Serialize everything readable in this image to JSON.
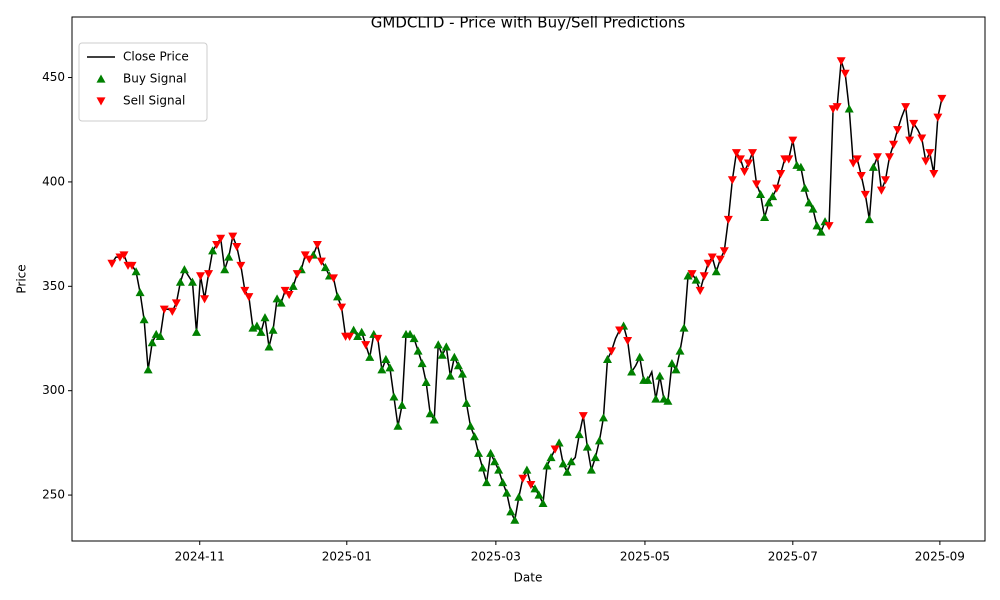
{
  "chart_data": {
    "type": "line",
    "title": "GMDCLTD - Price with Buy/Sell Predictions",
    "x_label": "Date",
    "y_label": "Price",
    "legend": "upper left",
    "grid": false,
    "categories": [
      null,
      null,
      null,
      null,
      null,
      null,
      null,
      null,
      null,
      null,
      null,
      null,
      null,
      null,
      null,
      null,
      null,
      null,
      null,
      null,
      null,
      null,
      null,
      null,
      null,
      null,
      null,
      null,
      null,
      null,
      null,
      null,
      null,
      null,
      null,
      null,
      null,
      null,
      null,
      null,
      null,
      null,
      null,
      null,
      null,
      null,
      null,
      null,
      null,
      null,
      null,
      null,
      null,
      null,
      null,
      null,
      null,
      null,
      null,
      null,
      null,
      null,
      null,
      null,
      null,
      null,
      null,
      null,
      null,
      null,
      null,
      null,
      null,
      null,
      null,
      null,
      null,
      null,
      null,
      null,
      null,
      null,
      null,
      null,
      null,
      null,
      null,
      null,
      null,
      null,
      null,
      null,
      null,
      null,
      null,
      null,
      null,
      null,
      null,
      null,
      null,
      null,
      null,
      null,
      null,
      null,
      null,
      null,
      null,
      null,
      null,
      null,
      null,
      null,
      null,
      null,
      null,
      null,
      null,
      null,
      null,
      null,
      null,
      null,
      null,
      null,
      null,
      null,
      null,
      null,
      null,
      null,
      null,
      null,
      null,
      null,
      null,
      null,
      null,
      null,
      null,
      null,
      null,
      null,
      null,
      null,
      null,
      null,
      null,
      null,
      null,
      null,
      null,
      null,
      null,
      null,
      null,
      null,
      null,
      null,
      null,
      null,
      null,
      null,
      null,
      null,
      null,
      null,
      null,
      null,
      null,
      null,
      null,
      null,
      null,
      null,
      null,
      null,
      null,
      null,
      null,
      null,
      null,
      null,
      null,
      null,
      null,
      null,
      null,
      null,
      null,
      null,
      null,
      null,
      null,
      null,
      null,
      null,
      null,
      null,
      null,
      null,
      null,
      null,
      null,
      null,
      null
    ],
    "xlim": [
      -9.9,
      216.7
    ],
    "xticks": [
      {
        "value": 21.8,
        "label": "2024-11"
      },
      {
        "value": 58.3,
        "label": "2025-01"
      },
      {
        "value": 95.3,
        "label": "2025-03"
      },
      {
        "value": 132.3,
        "label": "2025-05"
      },
      {
        "value": 169.0,
        "label": "2025-07"
      },
      {
        "value": 205.5,
        "label": "2025-09"
      }
    ],
    "ylim": [
      228,
      479
    ],
    "yticks": [
      250,
      300,
      350,
      400,
      450
    ],
    "series": [
      {
        "name": "Close Price",
        "color": "#000000",
        "marker": "line",
        "values": [
          361,
          364,
          364,
          365,
          360,
          360,
          357,
          347,
          334,
          310,
          323,
          327,
          326,
          339,
          339,
          338,
          342,
          352,
          358,
          355,
          352,
          328,
          355,
          344,
          356,
          367,
          370,
          373,
          358,
          364,
          374,
          369,
          360,
          348,
          345,
          330,
          331,
          328,
          335,
          321,
          329,
          344,
          342,
          348,
          346,
          350,
          356,
          358,
          365,
          363,
          365,
          370,
          362,
          359,
          355,
          354,
          345,
          340,
          326,
          326,
          329,
          326,
          328,
          322,
          316,
          327,
          325,
          310,
          315,
          311,
          297,
          283,
          293,
          327,
          327,
          325,
          319,
          313,
          304,
          289,
          286,
          322,
          317,
          321,
          307,
          316,
          312,
          308,
          294,
          283,
          278,
          270,
          263,
          256,
          270,
          266,
          262,
          256,
          251,
          242,
          238,
          249,
          258,
          262,
          255,
          253,
          250,
          246,
          264,
          268,
          272,
          275,
          265,
          261,
          266,
          268,
          279,
          288,
          273,
          262,
          268,
          276,
          287,
          315,
          319,
          325,
          329,
          331,
          324,
          309,
          312,
          316,
          305,
          305,
          309,
          296,
          307,
          296,
          295,
          313,
          310,
          319,
          330,
          355,
          356,
          353,
          348,
          355,
          361,
          364,
          357,
          363,
          367,
          382,
          401,
          414,
          411,
          405,
          409,
          414,
          399,
          394,
          383,
          390,
          393,
          397,
          404,
          411,
          411,
          420,
          408,
          407,
          397,
          390,
          387,
          379,
          376,
          381,
          379,
          435,
          436,
          458,
          452,
          435,
          409,
          411,
          403,
          394,
          382,
          407,
          412,
          396,
          401,
          412,
          418,
          425,
          431,
          436,
          420,
          428,
          425,
          421,
          410,
          414,
          404,
          431,
          440
        ]
      },
      {
        "name": "Buy Signal",
        "color": "#008000",
        "marker": "up",
        "values": [
          null,
          null,
          null,
          null,
          null,
          null,
          357,
          347,
          334,
          310,
          323,
          327,
          326,
          null,
          null,
          null,
          null,
          352,
          358,
          null,
          352,
          328,
          null,
          null,
          null,
          367,
          null,
          null,
          358,
          364,
          null,
          null,
          null,
          null,
          null,
          330,
          331,
          328,
          335,
          321,
          329,
          344,
          342,
          null,
          null,
          350,
          null,
          358,
          null,
          null,
          365,
          null,
          null,
          359,
          355,
          null,
          345,
          null,
          null,
          null,
          329,
          326,
          328,
          null,
          316,
          327,
          null,
          310,
          315,
          311,
          297,
          283,
          293,
          327,
          327,
          325,
          319,
          313,
          304,
          289,
          286,
          322,
          317,
          321,
          307,
          316,
          312,
          308,
          294,
          283,
          278,
          270,
          263,
          256,
          270,
          266,
          262,
          256,
          251,
          242,
          238,
          249,
          null,
          262,
          null,
          253,
          250,
          246,
          264,
          268,
          null,
          275,
          265,
          261,
          266,
          null,
          279,
          null,
          273,
          262,
          268,
          276,
          287,
          315,
          null,
          null,
          null,
          331,
          null,
          309,
          null,
          316,
          305,
          305,
          null,
          296,
          307,
          296,
          295,
          313,
          310,
          319,
          330,
          355,
          null,
          353,
          null,
          null,
          null,
          null,
          357,
          null,
          null,
          null,
          null,
          null,
          null,
          null,
          null,
          null,
          null,
          394,
          383,
          390,
          393,
          null,
          null,
          null,
          null,
          null,
          408,
          407,
          397,
          390,
          387,
          379,
          376,
          381,
          null,
          null,
          null,
          null,
          null,
          435,
          null,
          null,
          null,
          null,
          382,
          407,
          null,
          null,
          null,
          null,
          null,
          null,
          null,
          null,
          null,
          null,
          null,
          null,
          null,
          null,
          null,
          null,
          null
        ]
      },
      {
        "name": "Sell Signal",
        "color": "#ff0000",
        "marker": "down",
        "values": [
          361,
          null,
          364,
          365,
          360,
          360,
          null,
          null,
          null,
          null,
          null,
          null,
          null,
          339,
          null,
          338,
          342,
          null,
          null,
          null,
          null,
          null,
          355,
          344,
          356,
          null,
          370,
          373,
          null,
          null,
          374,
          369,
          360,
          348,
          345,
          null,
          null,
          null,
          null,
          null,
          null,
          null,
          null,
          348,
          346,
          null,
          356,
          null,
          365,
          363,
          null,
          370,
          362,
          null,
          null,
          354,
          null,
          340,
          326,
          326,
          null,
          null,
          null,
          322,
          null,
          null,
          325,
          null,
          null,
          null,
          null,
          null,
          null,
          null,
          null,
          null,
          null,
          null,
          null,
          null,
          null,
          null,
          null,
          null,
          null,
          null,
          null,
          null,
          null,
          null,
          null,
          null,
          null,
          null,
          null,
          null,
          null,
          null,
          null,
          null,
          null,
          null,
          258,
          null,
          255,
          null,
          null,
          null,
          null,
          null,
          272,
          null,
          null,
          null,
          null,
          null,
          null,
          288,
          null,
          null,
          null,
          null,
          null,
          null,
          319,
          null,
          329,
          null,
          324,
          null,
          null,
          null,
          null,
          null,
          null,
          null,
          null,
          null,
          null,
          null,
          null,
          null,
          null,
          null,
          356,
          null,
          348,
          355,
          361,
          364,
          null,
          363,
          367,
          382,
          401,
          414,
          411,
          405,
          409,
          414,
          399,
          null,
          null,
          null,
          null,
          397,
          404,
          411,
          411,
          420,
          null,
          null,
          null,
          null,
          null,
          null,
          null,
          null,
          379,
          435,
          436,
          458,
          452,
          null,
          409,
          411,
          403,
          394,
          null,
          null,
          412,
          396,
          401,
          412,
          418,
          425,
          null,
          436,
          420,
          428,
          null,
          421,
          410,
          414,
          404,
          431,
          440
        ]
      }
    ]
  }
}
